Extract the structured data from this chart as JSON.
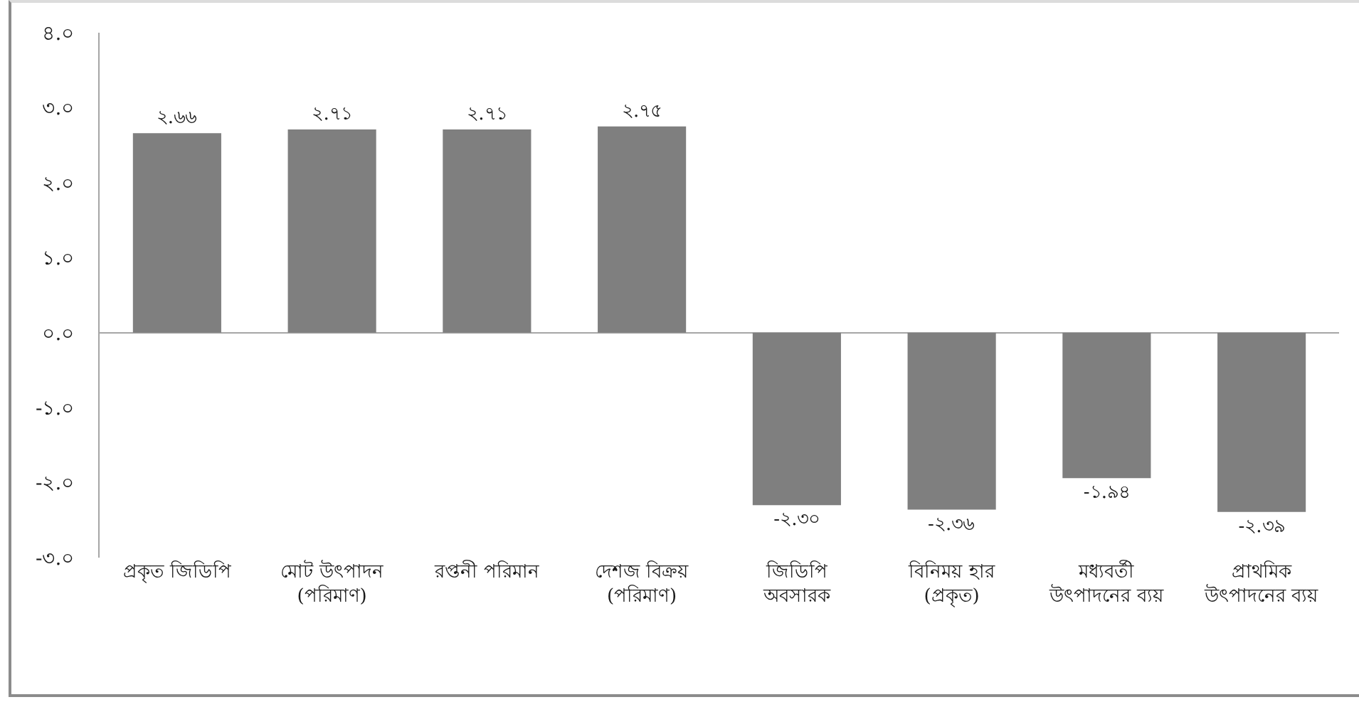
{
  "chart_data": {
    "type": "bar",
    "categories": [
      "প্রকৃত জিডিপি",
      "মোট উৎপাদন (পরিমাণ)",
      "রপ্তনী পরিমান",
      "দেশজ বিক্রয় (পরিমাণ)",
      "জিডিপি অবসারক",
      "বিনিময় হার (প্রকৃত)",
      "মধ্যবর্তী উৎপাদনের ব্যয়",
      "প্রাথমিক উৎপাদনের ব্যয়"
    ],
    "values": [
      2.66,
      2.71,
      2.71,
      2.75,
      -2.3,
      -2.36,
      -1.94,
      -2.39
    ],
    "value_labels": [
      "২.৬৬",
      "২.৭১",
      "২.৭১",
      "২.৭৫",
      "-২.৩০",
      "-২.৩৬",
      "-১.৯৪",
      "-২.৩৯"
    ],
    "color": "#7f7f7f",
    "ylim": [
      -3,
      4
    ],
    "yticks": [
      {
        "value": 4,
        "label": "৪.০"
      },
      {
        "value": 3,
        "label": "৩.০"
      },
      {
        "value": 2,
        "label": "২.০"
      },
      {
        "value": 1,
        "label": "১.০"
      },
      {
        "value": 0,
        "label": "০.০"
      },
      {
        "value": -1,
        "label": "-১.০"
      },
      {
        "value": -2,
        "label": "-২.০"
      },
      {
        "value": -3,
        "label": "-৩.০"
      }
    ]
  }
}
